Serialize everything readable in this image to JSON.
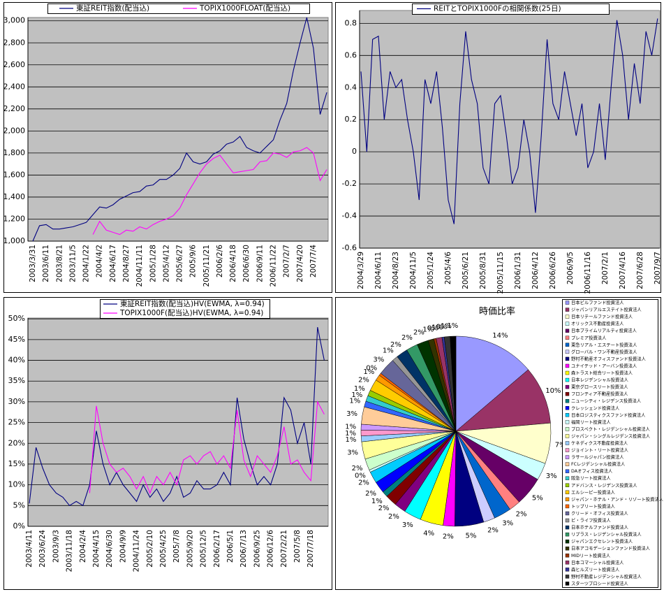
{
  "chart_data": [
    {
      "type": "line",
      "background": "#c0c0c0",
      "grid": true,
      "series": [
        {
          "name": "東証REIT指数(配当込)",
          "color": "#000080",
          "values": [
            1000,
            1140,
            1150,
            1110,
            1110,
            1120,
            1130,
            1150,
            1170,
            1240,
            1310,
            1300,
            1330,
            1380,
            1410,
            1440,
            1450,
            1500,
            1510,
            1560,
            1560,
            1600,
            1660,
            1800,
            1720,
            1700,
            1720,
            1790,
            1820,
            1880,
            1900,
            1950,
            1850,
            1820,
            1800,
            1860,
            1920,
            2100,
            2250,
            2550,
            2800,
            3030,
            2750,
            2150,
            2350
          ]
        },
        {
          "name": "TOPIX1000FLOAT(配当込)",
          "color": "#ff00ff",
          "values": [
            null,
            null,
            null,
            null,
            null,
            null,
            null,
            null,
            null,
            1060,
            1180,
            1100,
            1080,
            1060,
            1100,
            1090,
            1130,
            1110,
            1150,
            1180,
            1200,
            1230,
            1300,
            1420,
            1520,
            1620,
            1700,
            1750,
            1780,
            1700,
            1620,
            1630,
            1640,
            1650,
            1720,
            1730,
            1800,
            1790,
            1760,
            1810,
            1820,
            1850,
            1800,
            1550,
            1650
          ]
        }
      ],
      "categories": [
        "2003/3/31",
        null,
        "2003/6/11",
        null,
        "2003/8/21",
        null,
        "2003/11/5",
        null,
        "2004/1/22",
        null,
        "2004/4/2",
        null,
        "2004/6/17",
        null,
        "2004/8/27",
        null,
        "2004/11/11",
        null,
        "2005/1/28",
        null,
        "2005/4/12",
        null,
        "2005/6/27",
        null,
        "2005/9/6",
        null,
        "2005/11/21",
        null,
        "2006/2/6",
        null,
        "2006/4/18",
        null,
        "2006/6/30",
        null,
        "2006/9/11",
        null,
        "2006/11/22",
        null,
        "2007/2/7",
        null,
        "2007/4/20",
        null,
        "2007/7/4",
        null,
        null
      ],
      "ylim": [
        1000,
        3030
      ],
      "yticks": [
        {
          "value": 1000,
          "label": "1,000"
        },
        {
          "value": 1200,
          "label": "1,200"
        },
        {
          "value": 1400,
          "label": "1,400"
        },
        {
          "value": 1600,
          "label": "1,600"
        },
        {
          "value": 1800,
          "label": "1,800"
        },
        {
          "value": 2000,
          "label": "2,000"
        },
        {
          "value": 2200,
          "label": "2,200"
        },
        {
          "value": 2400,
          "label": "2,400"
        },
        {
          "value": 2600,
          "label": "2,600"
        },
        {
          "value": 2800,
          "label": "2,800"
        },
        {
          "value": 3000,
          "label": "3,000"
        }
      ]
    },
    {
      "type": "line",
      "background": "#c0c0c0",
      "grid": true,
      "series": [
        {
          "name": "REITとTOPIX1000Fの相関係数(25日)",
          "color": "#000080",
          "values": [
            0.5,
            0.0,
            0.7,
            0.72,
            0.2,
            0.5,
            0.4,
            0.45,
            0.2,
            0.0,
            -0.3,
            0.45,
            0.3,
            0.5,
            0.15,
            -0.3,
            -0.45,
            0.3,
            0.75,
            0.45,
            0.3,
            -0.1,
            -0.2,
            0.3,
            0.35,
            0.1,
            -0.2,
            -0.1,
            0.2,
            0.0,
            -0.38,
            0.1,
            0.7,
            0.3,
            0.2,
            0.5,
            0.3,
            0.1,
            0.3,
            -0.1,
            0.0,
            0.3,
            -0.05,
            0.4,
            0.82,
            0.6,
            0.2,
            0.55,
            0.3,
            0.75,
            0.6,
            0.83
          ]
        }
      ],
      "categories": [
        "2004/3/29",
        null,
        null,
        "2004/6/11",
        null,
        null,
        "2004/8/23",
        null,
        null,
        "2004/11/5",
        null,
        null,
        "2005/1/24",
        null,
        null,
        "2005/4/6",
        null,
        null,
        "2005/6/21",
        null,
        null,
        "2005/8/31",
        null,
        null,
        "2005/11/15",
        null,
        null,
        "2006/1/31",
        null,
        null,
        "2006/4/12",
        null,
        null,
        "2006/6/26",
        null,
        null,
        "2006/9/5",
        null,
        null,
        "2006/11/16",
        null,
        null,
        "2007/2/1",
        null,
        null,
        "2007/4/16",
        null,
        null,
        "2007/6/28",
        null,
        null,
        "2007/9/7"
      ],
      "ylim": [
        -0.6,
        0.88
      ],
      "yticks": [
        -0.6,
        -0.4,
        -0.2,
        0,
        0.2,
        0.4,
        0.6,
        0.8
      ]
    },
    {
      "type": "line",
      "background": "#c0c0c0",
      "grid": true,
      "series": [
        {
          "name": "東証REIT指数(配当込)HV(EWMA, λ=0.94)",
          "color": "#000080",
          "values": [
            5.5,
            19,
            14,
            10,
            8,
            7,
            5,
            6,
            5,
            10,
            23,
            15,
            10,
            13,
            10,
            8,
            6,
            10,
            7,
            9,
            6,
            8,
            12,
            7,
            8,
            11,
            9,
            9,
            10,
            13,
            10,
            31,
            21,
            15,
            10,
            12,
            10,
            15,
            31,
            28,
            20,
            25,
            15,
            48,
            40
          ]
        },
        {
          "name": "TOPIX1000F(配当込)HV(EWMA, λ=0.94)",
          "color": "#ff00ff",
          "values": [
            null,
            null,
            null,
            null,
            null,
            null,
            null,
            null,
            null,
            8,
            29,
            20,
            15,
            13,
            14,
            12,
            9,
            12,
            8,
            12,
            10,
            13,
            10,
            16,
            17,
            15,
            17,
            18,
            15,
            17,
            14,
            28,
            16,
            12,
            17,
            15,
            13,
            17,
            24,
            15,
            16,
            13,
            11,
            30,
            27
          ]
        }
      ],
      "categories": [
        "2003/4/11",
        null,
        "2003/6/24",
        null,
        "2003/9/3",
        null,
        "2003/11/18",
        null,
        "2004/2/4",
        null,
        "2004/4/15",
        null,
        "2004/6/30",
        null,
        "2004/9/9",
        null,
        "2004/11/24",
        null,
        "2005/2/10",
        null,
        "2005/4/25",
        null,
        "2005/7/8",
        null,
        "2005/9/20",
        null,
        "2005/12/5",
        null,
        "2006/2/17",
        null,
        "2006/5/1",
        null,
        "2006/7/13",
        null,
        "2006/9/25",
        null,
        "2006/12/6",
        null,
        "2007/2/21",
        null,
        "2007/5/8",
        null,
        "2007/7/18",
        null,
        null
      ],
      "ylim": [
        0,
        50.2
      ],
      "yticks": [
        {
          "value": 0,
          "label": "0%"
        },
        {
          "value": 5,
          "label": "5%"
        },
        {
          "value": 10,
          "label": "10%"
        },
        {
          "value": 15,
          "label": "15%"
        },
        {
          "value": 20,
          "label": "20%"
        },
        {
          "value": 25,
          "label": "25%"
        },
        {
          "value": 30,
          "label": "30%"
        },
        {
          "value": 35,
          "label": "35%"
        },
        {
          "value": 40,
          "label": "40%"
        },
        {
          "value": 45,
          "label": "45%"
        },
        {
          "value": 50,
          "label": "50%"
        }
      ]
    },
    {
      "type": "pie",
      "title": "時価比率",
      "categories": [
        "日本ビルファンド投資法人",
        "ジャパンリアルエステイト投資法人",
        "日本リテールファンド投資法人",
        "オリックス不動産投資法人",
        "日本プライムリアルティ投資法人",
        "プレミア投資法人",
        "東急リアル・エステート投資法人",
        "グローバル・ワン不動産投資法人",
        "野村不動産オフィスファンド投資法人",
        "ユナイテッド・アーバン投資法人",
        "森トラスト総合リート投資法人",
        "日本レジデンシャル投資法人",
        "東京グロースリート投資法人",
        "フロンティア不動産投資法人",
        "ニューシティ・レジデンス投資法人",
        "クレッシェンド投資法人",
        "日本ロジスティクスファンド投資法人",
        "福岡リート投資法人",
        "プロスペクト・レジデンシャル投資法人",
        "ジャパン・シングルレジデンス投資法人",
        "ケネディクス不動産投資法人",
        "ジョイント・リート投資法人",
        "ラサールジャパン投資法人",
        "FCレジデンシャル投資法人",
        "DAオフィス投資法人",
        "阪急リート投資法人",
        "アドバンス・レジデンス投資法人",
        "エルシーピー投資法人",
        "ジャパン・ホテル・アンド・リゾート投資法人",
        "トップリート投資法人",
        "クリード・オフィス投資法人",
        "ビ・ライフ投資法人",
        "日本ホテルファンド投資法人",
        "リプラス・レジデンシャル投資法人",
        "ジャパンエクセレント投資法人",
        "日本アコモデーションファンド投資法人",
        "MIDリート投資法人",
        "日本コマーシャル投資法人",
        "森ヒルズリート投資法人",
        "野村不動産レジデンシャル投資法人",
        "スターツプロシード投資法人"
      ],
      "values": [
        14,
        10,
        7,
        3,
        5,
        2,
        3,
        2,
        5,
        2,
        4,
        3,
        2,
        2,
        1,
        2,
        2,
        0.4,
        2,
        3,
        1,
        1,
        1,
        3,
        1,
        1,
        1,
        2,
        1,
        0.4,
        3,
        1,
        2,
        2,
        2,
        1,
        0.4,
        1,
        0.4,
        1,
        1
      ],
      "value_labels": [
        "14%",
        "10%",
        "7%",
        "3%",
        "5%",
        "2%",
        "3%",
        "2%",
        "5%",
        "2%",
        "4%",
        "3%",
        "2%",
        "2%",
        "1%",
        "2%",
        "2%",
        "0%",
        "2%",
        "3%",
        "1%",
        "1%",
        "1%",
        "3%",
        "1%",
        "1%",
        "1%",
        "2%",
        "1%",
        "0%",
        "3%",
        "1%",
        "2%",
        "2%",
        "2%",
        "1%",
        "0%",
        "1%",
        "0%",
        "1%",
        "1%"
      ],
      "colors": [
        "#9999ff",
        "#993366",
        "#ffffcc",
        "#ccffff",
        "#660066",
        "#ff8080",
        "#0066cc",
        "#ccccff",
        "#000080",
        "#ff00ff",
        "#ffff00",
        "#00ffff",
        "#800080",
        "#800000",
        "#008080",
        "#0000ff",
        "#00ccff",
        "#ccffff",
        "#ccffcc",
        "#ffff99",
        "#99ccff",
        "#ff99cc",
        "#cc99ff",
        "#ffcc99",
        "#3366ff",
        "#33cccc",
        "#99cc00",
        "#ffcc00",
        "#ff9900",
        "#ff6600",
        "#666699",
        "#969696",
        "#003366",
        "#339966",
        "#003300",
        "#333300",
        "#993300",
        "#993366",
        "#333399",
        "#333333",
        "#000000"
      ]
    }
  ]
}
